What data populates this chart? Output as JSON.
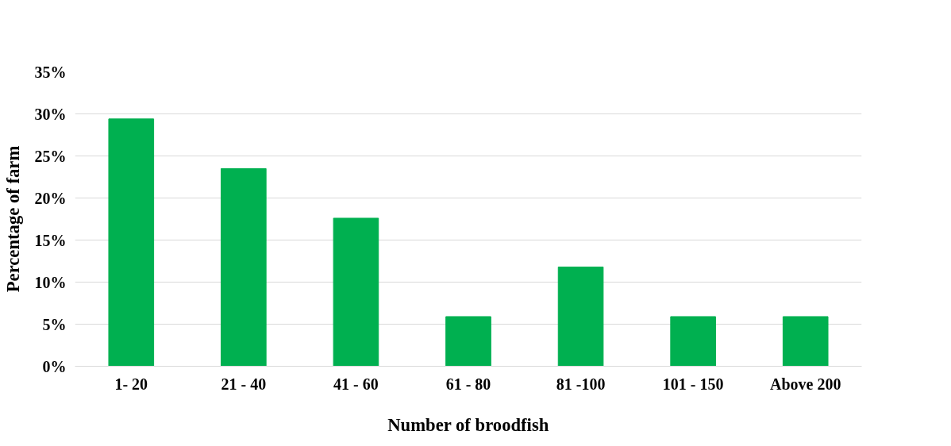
{
  "chart_data": {
    "type": "bar",
    "xlabel": "Number of broodfish",
    "ylabel": "Percentage of farm",
    "categories": [
      "1- 20",
      "21 - 40",
      "41 - 60",
      "61 - 80",
      "81 -100",
      "101 - 150",
      "Above 200"
    ],
    "values": [
      29.4,
      23.5,
      17.6,
      5.9,
      11.8,
      5.9,
      5.9
    ],
    "color": "#00b050",
    "ylim": [
      0,
      35
    ],
    "yticks": [
      {
        "value": 0,
        "label": "0%"
      },
      {
        "value": 5,
        "label": "5%"
      },
      {
        "value": 10,
        "label": "10%"
      },
      {
        "value": 15,
        "label": "15%"
      },
      {
        "value": 20,
        "label": "20%"
      },
      {
        "value": 25,
        "label": "25%"
      },
      {
        "value": 30,
        "label": "30%"
      },
      {
        "value": 35,
        "label": "35%"
      }
    ],
    "grid": "y"
  }
}
